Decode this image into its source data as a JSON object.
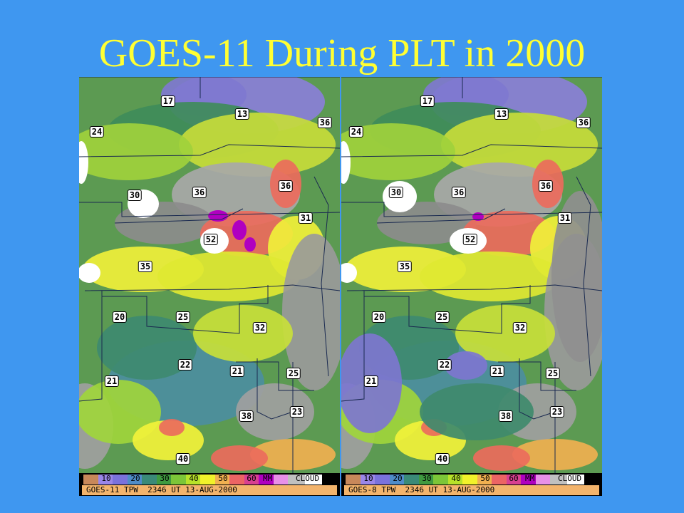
{
  "title": "GOES-11 During PLT in 2000",
  "panels": [
    {
      "id": "left",
      "caption": "GOES-11 TPW  2346 UT 13-AUG-2000",
      "labels": [
        "17",
        "13",
        "36",
        "24",
        "30",
        "36",
        "36",
        "31",
        "52",
        "35",
        "20",
        "25",
        "32",
        "22",
        "21",
        "25",
        "21",
        "38",
        "23",
        "40"
      ]
    },
    {
      "id": "right",
      "caption": "GOES-8 TPW  2346 UT 13-AUG-2000",
      "labels": [
        "17",
        "13",
        "36",
        "24",
        "30",
        "36",
        "36",
        "31",
        "52",
        "35",
        "20",
        "25",
        "32",
        "22",
        "21",
        "25",
        "21",
        "38",
        "23",
        "40"
      ]
    }
  ],
  "colorbar": {
    "ticks": [
      "10",
      "20",
      "30",
      "40",
      "50",
      "60"
    ],
    "unit": "MM",
    "cloud_label": "CLOUD",
    "colors": [
      "#c8885a",
      "#9a86e8",
      "#7a72dc",
      "#4f8cc8",
      "#3a8a78",
      "#3f9a40",
      "#7cc638",
      "#b8e22a",
      "#f2f22a",
      "#f0b050",
      "#ec6464",
      "#d84090",
      "#b000c0",
      "#e890e8",
      "#c0c0c0",
      "#ffffff"
    ]
  }
}
